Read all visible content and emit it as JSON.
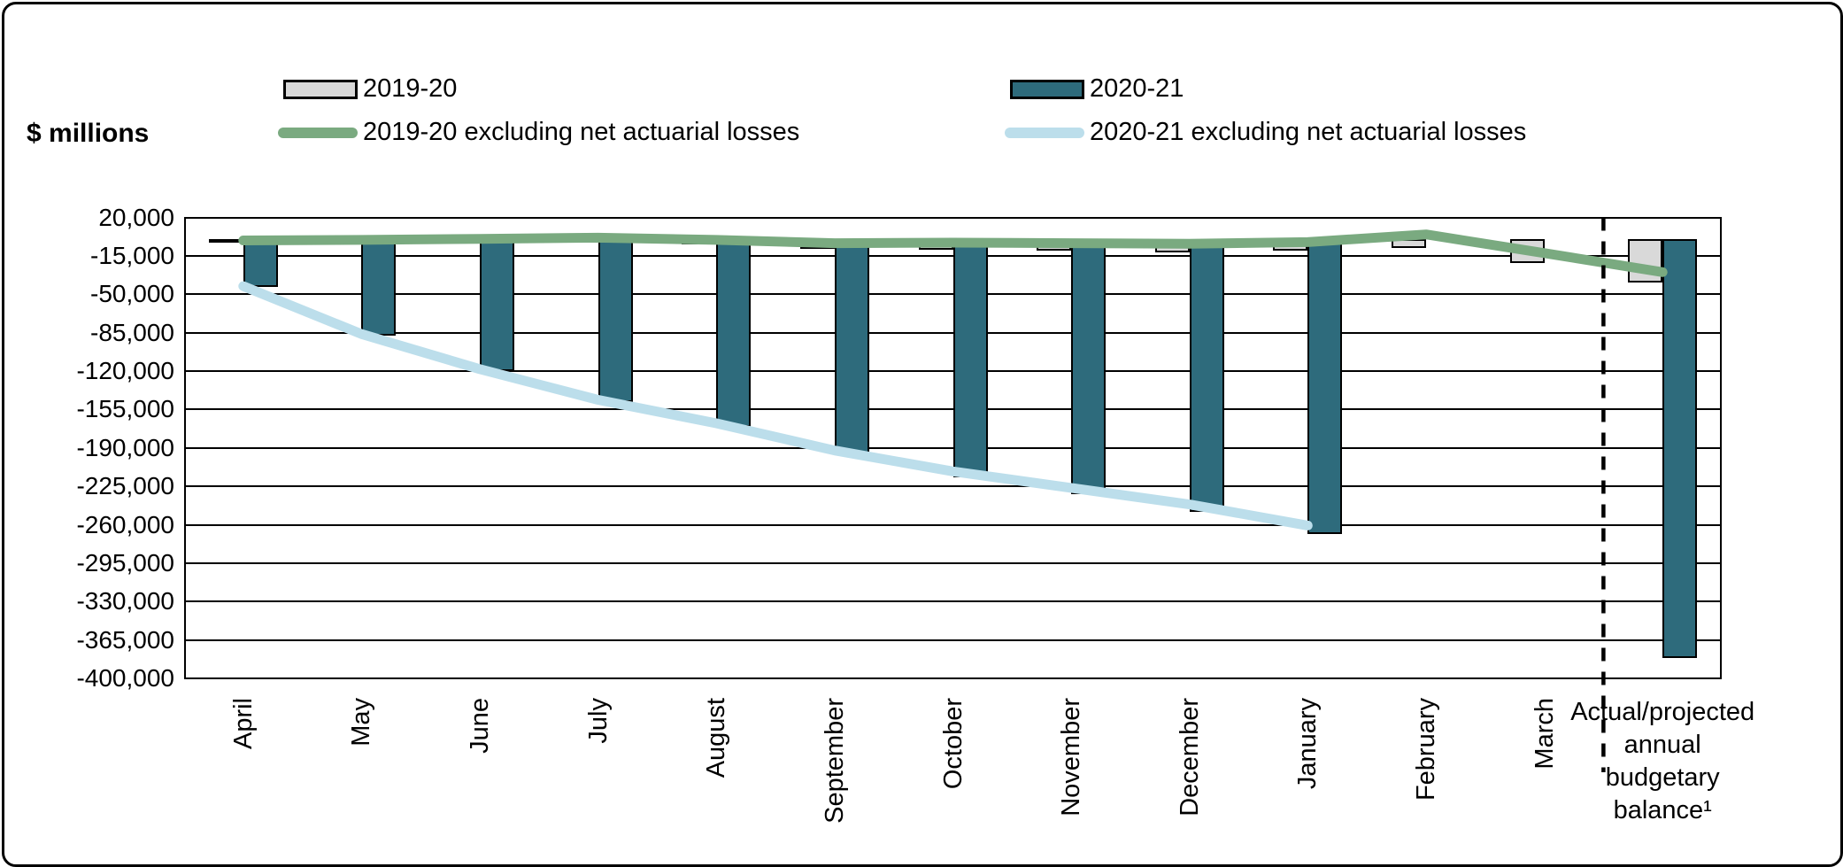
{
  "figure": {
    "y_axis_title": "$ millions"
  },
  "legend": {
    "position": "top",
    "items": [
      {
        "label": "2019-20",
        "swatch": "bar",
        "color": "#D9D9D9"
      },
      {
        "label": "2020-21",
        "swatch": "bar",
        "color": "#2E6B7C"
      },
      {
        "label": "2019-20 excluding net actuarial losses",
        "swatch": "line",
        "color": "#7AAA80"
      },
      {
        "label": "2020-21 excluding net actuarial losses",
        "swatch": "line",
        "color": "#BCDEEB"
      }
    ]
  },
  "chart_data": {
    "type": "bar",
    "title": "",
    "xlabel": "",
    "ylabel": "$ millions",
    "units": "$ millions",
    "grid": true,
    "legend_position": "top",
    "ylim": [
      -400000,
      20000
    ],
    "ytick_step": 35000,
    "y_ticks": [
      "20,000",
      "-15,000",
      "-50,000",
      "-85,000",
      "-120,000",
      "-155,000",
      "-190,000",
      "-225,000",
      "-260,000",
      "-295,000",
      "-330,000",
      "-365,000",
      "-400,000"
    ],
    "categories": [
      "April",
      "May",
      "June",
      "July",
      "August",
      "September",
      "October",
      "November",
      "December",
      "January",
      "February",
      "March",
      "Actual/projected annual budgetary balance¹"
    ],
    "last_category_label_lines": [
      "Actual/projected",
      "annual",
      "budgetary",
      "balance¹"
    ],
    "separator": {
      "type": "dashed-vertical-line",
      "after_category": "March"
    },
    "series": [
      {
        "name": "2019-20",
        "type": "bar",
        "color": "#D9D9D9",
        "values": [
          -2000,
          -1000,
          -1000,
          -500,
          -4500,
          -9000,
          -9200,
          -10200,
          -11500,
          -10600,
          -7600,
          -21800,
          -39400
        ]
      },
      {
        "name": "2020-21",
        "type": "bar",
        "color": "#2E6B7C",
        "values": [
          -43300,
          -87800,
          -120400,
          -148600,
          -170500,
          -196800,
          -216600,
          -232300,
          -248200,
          -268200,
          null,
          null,
          -381600
        ]
      },
      {
        "name": "2019-20 excluding net actuarial losses",
        "type": "line",
        "color": "#7AAA80",
        "values": [
          -1000,
          -500,
          500,
          1500,
          -500,
          -3500,
          -3000,
          -3500,
          -4000,
          -2500,
          4500,
          -12500,
          -29900
        ]
      },
      {
        "name": "2020-21 excluding net actuarial losses",
        "type": "line",
        "color": "#BCDEEB",
        "values": [
          -42600,
          -86300,
          -118200,
          -146200,
          -167600,
          -192400,
          -211400,
          -226400,
          -241500,
          -260700,
          null,
          null,
          null
        ]
      }
    ]
  }
}
